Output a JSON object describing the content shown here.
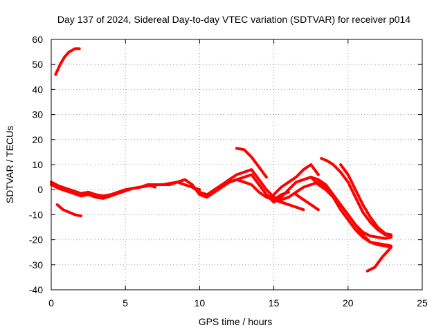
{
  "chart_data": {
    "type": "line",
    "title": "Day 137 of 2024, Sidereal Day-to-day VTEC variation (SDTVAR) for receiver p014",
    "xlabel": "GPS time / hours",
    "ylabel": "SDTVAR / TECUs",
    "xlim": [
      0,
      25
    ],
    "ylim": [
      -40,
      60
    ],
    "xticks": [
      0,
      5,
      10,
      15,
      20,
      25
    ],
    "yticks": [
      -40,
      -30,
      -20,
      -10,
      0,
      10,
      20,
      30,
      40,
      50,
      60
    ],
    "xtick_labels": [
      "0",
      "5",
      "10",
      "15",
      "20",
      "25"
    ],
    "ytick_labels": [
      "-40",
      "-30",
      "-20",
      "-10",
      "0",
      "10",
      "20",
      "30",
      "40",
      "50",
      "60"
    ],
    "grid": true,
    "legend": "none",
    "series_color": "#ff0000",
    "series": [
      {
        "name": "satellite-1",
        "x": [
          0.3,
          0.6,
          0.9,
          1.2,
          1.6,
          1.9
        ],
        "y": [
          46,
          50,
          53,
          55,
          56.3,
          56.3
        ]
      },
      {
        "name": "satellite-2",
        "x": [
          0.4,
          0.8,
          1.2,
          1.6,
          2.0
        ],
        "y": [
          -6,
          -8,
          -9,
          -10,
          -10.5
        ]
      },
      {
        "name": "satellite-3",
        "x": [
          0.0,
          0.5,
          1.0,
          1.5,
          2.0,
          2.5,
          3.0,
          3.5,
          4.0,
          4.5,
          5.0,
          5.5,
          6.0,
          6.5,
          7.0,
          7.5,
          8.0,
          8.5,
          9.0,
          9.5,
          10.0
        ],
        "y": [
          3,
          1.5,
          0.5,
          -0.5,
          -1.5,
          -1,
          -2,
          -2.5,
          -2,
          -1,
          0,
          0.5,
          1,
          1.5,
          2,
          2,
          2,
          3,
          2,
          1,
          0
        ]
      },
      {
        "name": "satellite-4",
        "x": [
          0.0,
          0.5,
          1.0,
          1.5,
          2.0,
          2.5,
          3.0,
          3.5,
          4.0,
          4.5,
          5.0,
          5.5,
          6.0,
          6.5,
          7.0
        ],
        "y": [
          2,
          0.5,
          -0.5,
          -1.5,
          -2.5,
          -2,
          -3,
          -3.5,
          -2.5,
          -1.5,
          -0.5,
          0.5,
          1,
          2,
          1
        ]
      },
      {
        "name": "satellite-5",
        "x": [
          6.5,
          7.0,
          7.5,
          8.0,
          8.5,
          9.0,
          9.5,
          10.0,
          10.5,
          11.0,
          11.5,
          12.0,
          12.5,
          13.0,
          13.5,
          14.0,
          14.5,
          15.0,
          15.5,
          16.0
        ],
        "y": [
          2,
          2,
          2,
          2.5,
          3,
          4,
          2,
          -2,
          -3,
          -1,
          1,
          3,
          4,
          5,
          6,
          2,
          -2,
          -4,
          -5,
          -6
        ]
      },
      {
        "name": "satellite-6",
        "x": [
          9.5,
          10.0,
          10.5,
          11.0,
          11.5,
          12.0,
          12.5,
          13.0,
          13.5,
          14.0,
          14.5,
          15.0,
          15.5,
          16.0,
          16.5,
          17.0
        ],
        "y": [
          1,
          -1,
          -2,
          0,
          2,
          4,
          6,
          7,
          8,
          4,
          0,
          -3,
          -5,
          -6,
          -7,
          -8
        ]
      },
      {
        "name": "satellite-7",
        "x": [
          12.5,
          13.0,
          13.5,
          14.0,
          14.5
        ],
        "y": [
          16.5,
          16,
          13,
          9,
          5
        ]
      },
      {
        "name": "satellite-8",
        "x": [
          11.5,
          12.0,
          12.5,
          13.0,
          13.5,
          14.0,
          14.5,
          15.0,
          15.5,
          16.0
        ],
        "y": [
          2,
          3,
          4,
          3,
          2,
          -1,
          -3,
          -4,
          -2,
          -1
        ]
      },
      {
        "name": "satellite-9",
        "x": [
          14.5,
          15.0,
          15.5,
          16.0,
          16.5,
          17.0,
          17.5,
          18.0,
          18.5,
          19.0,
          19.5,
          20.0,
          20.5,
          21.0,
          21.5,
          22.0,
          22.5,
          22.9
        ],
        "y": [
          -2,
          -5,
          -3,
          0,
          3,
          4,
          5,
          4,
          2,
          -2,
          -6,
          -10,
          -14,
          -18,
          -21,
          -22,
          -22.5,
          -23
        ]
      },
      {
        "name": "satellite-10",
        "x": [
          15.0,
          15.5,
          16.0,
          16.5,
          17.0,
          17.5,
          18.0
        ],
        "y": [
          -2,
          1,
          3,
          5,
          8,
          10,
          6
        ]
      },
      {
        "name": "satellite-11",
        "x": [
          16.5,
          17.0,
          17.5,
          18.0
        ],
        "y": [
          -2,
          -4,
          -6,
          -8
        ]
      },
      {
        "name": "satellite-12",
        "x": [
          15.0,
          15.5,
          16.0,
          16.5,
          17.0,
          17.5,
          18.0,
          18.5,
          19.0,
          19.5,
          20.0,
          20.5,
          21.0,
          21.5,
          22.0,
          22.5,
          22.9
        ],
        "y": [
          -3,
          -4,
          -3,
          -1,
          1,
          2,
          3,
          1,
          -3,
          -8,
          -12,
          -16,
          -19,
          -21,
          -21.5,
          -22,
          -22.5
        ]
      },
      {
        "name": "satellite-13",
        "x": [
          17.5,
          18.0,
          18.5,
          19.0,
          19.5,
          20.0,
          20.5,
          21.0,
          21.5,
          22.0,
          22.5,
          22.9
        ],
        "y": [
          5,
          2,
          0,
          -3,
          -6,
          -10,
          -14,
          -17,
          -18.5,
          -19,
          -19.5,
          -19
        ]
      },
      {
        "name": "satellite-14",
        "x": [
          18.2,
          18.6,
          19.0,
          19.5,
          20.0,
          20.5,
          21.0,
          21.5,
          22.0,
          22.5,
          22.9
        ],
        "y": [
          12.5,
          11.5,
          10,
          7,
          3,
          -3,
          -9,
          -13,
          -16,
          -18,
          -18.5
        ]
      },
      {
        "name": "satellite-15",
        "x": [
          19.5,
          20.0,
          20.5,
          21.0,
          21.5,
          22.0,
          22.5,
          22.9
        ],
        "y": [
          10,
          6,
          0,
          -6,
          -11,
          -15,
          -17.5,
          -18
        ]
      },
      {
        "name": "satellite-16",
        "x": [
          21.3,
          21.8,
          22.3,
          22.9
        ],
        "y": [
          -32.5,
          -31,
          -27,
          -23
        ]
      }
    ]
  }
}
